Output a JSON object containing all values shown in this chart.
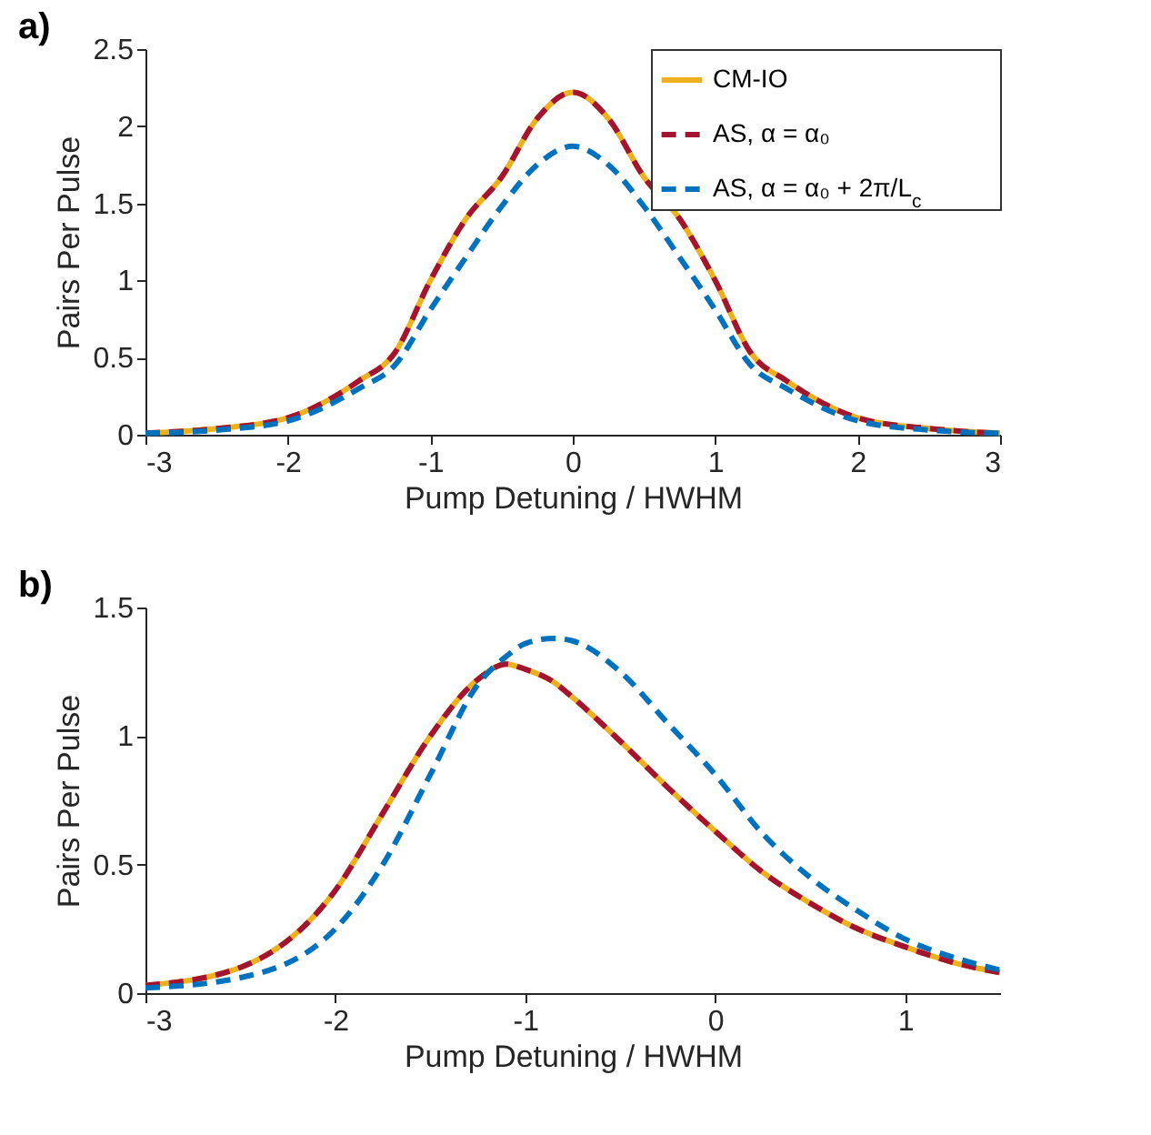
{
  "chart_data": [
    {
      "type": "line",
      "title": "a)",
      "xlabel": "Pump Detuning / HWHM",
      "ylabel": "Pairs Per Pulse",
      "xlim": [
        -3,
        3
      ],
      "ylim": [
        0,
        2.5
      ],
      "xticks": [
        -3,
        -2,
        -1,
        0,
        1,
        2,
        3
      ],
      "yticks": [
        0,
        0.5,
        1,
        1.5,
        2,
        2.5
      ],
      "grid": false,
      "legend": "top right",
      "x": [
        -3,
        -2.5,
        -2,
        -1.5,
        -1.25,
        -1,
        -0.75,
        -0.5,
        -0.25,
        0,
        0.25,
        0.5,
        0.75,
        1,
        1.25,
        1.5,
        2,
        2.5,
        3
      ],
      "series": [
        {
          "name": "CM-IO",
          "color": "#edb120",
          "line_style": "solid",
          "values": [
            0.01,
            0.04,
            0.11,
            0.35,
            0.53,
            1.0,
            1.4,
            1.67,
            2.05,
            2.22,
            2.05,
            1.67,
            1.4,
            1.0,
            0.53,
            0.35,
            0.11,
            0.04,
            0.01
          ]
        },
        {
          "name": "AS,  α = α₀",
          "color": "#a2142f",
          "line_style": "dashed",
          "values": [
            0.01,
            0.04,
            0.11,
            0.35,
            0.53,
            1.0,
            1.4,
            1.67,
            2.05,
            2.22,
            2.05,
            1.67,
            1.4,
            1.0,
            0.53,
            0.35,
            0.11,
            0.04,
            0.01
          ]
        },
        {
          "name": "AS,  α = α₀ + 2π/L$_{c}$",
          "color": "#0072bd",
          "line_style": "dashed",
          "values": [
            0.01,
            0.03,
            0.09,
            0.3,
            0.45,
            0.81,
            1.15,
            1.48,
            1.75,
            1.87,
            1.75,
            1.48,
            1.15,
            0.81,
            0.45,
            0.3,
            0.09,
            0.03,
            0.01
          ]
        }
      ]
    },
    {
      "type": "line",
      "title": "b)",
      "xlabel": "Pump Detuning / HWHM",
      "ylabel": "Pairs Per Pulse",
      "xlim": [
        -3,
        1.5
      ],
      "ylim": [
        0,
        1.5
      ],
      "xticks": [
        -3,
        -2,
        -1,
        0,
        1
      ],
      "yticks": [
        0,
        0.5,
        1,
        1.5
      ],
      "grid": false,
      "legend": false,
      "x": [
        -3,
        -2.5,
        -2,
        -1.75,
        -1.5,
        -1.25,
        -1.1,
        -1,
        -0.85,
        -0.75,
        -0.5,
        -0.25,
        0,
        0.25,
        0.5,
        0.75,
        1,
        1.25,
        1.5
      ],
      "series": [
        {
          "color": "#edb120",
          "line_style": "solid",
          "values": [
            0.03,
            0.1,
            0.4,
            0.7,
            1.0,
            1.22,
            1.28,
            1.26,
            1.21,
            1.15,
            0.98,
            0.8,
            0.63,
            0.47,
            0.35,
            0.25,
            0.18,
            0.12,
            0.08
          ]
        },
        {
          "color": "#a2142f",
          "line_style": "dashed",
          "values": [
            0.03,
            0.1,
            0.4,
            0.7,
            1.0,
            1.22,
            1.28,
            1.26,
            1.21,
            1.15,
            0.98,
            0.8,
            0.63,
            0.47,
            0.35,
            0.25,
            0.18,
            0.12,
            0.08
          ]
        },
        {
          "color": "#0072bd",
          "line_style": "dashed",
          "values": [
            0.02,
            0.06,
            0.25,
            0.5,
            0.85,
            1.2,
            1.31,
            1.36,
            1.38,
            1.37,
            1.25,
            1.05,
            0.85,
            0.62,
            0.45,
            0.32,
            0.21,
            0.14,
            0.09
          ]
        }
      ]
    }
  ]
}
